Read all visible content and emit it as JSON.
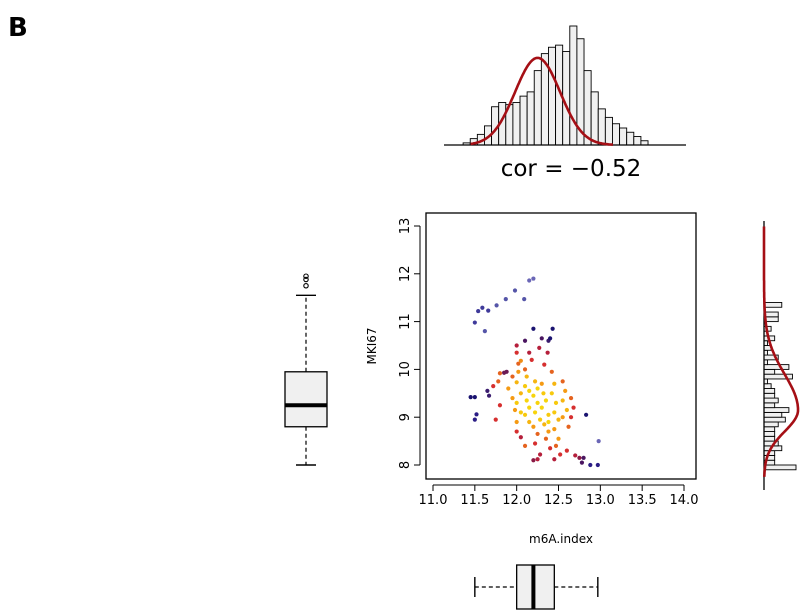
{
  "panel_label": "B",
  "colors": {
    "density_line": "#a50f15",
    "bar_fill": "#f0f0f0",
    "bar_stroke": "#000000",
    "box_fill": "#f0f0f0",
    "axis": "#000000"
  },
  "chart_data": [
    {
      "type": "scatter",
      "name": "main-scatter",
      "xlabel": "m6A.index",
      "ylabel": "MKI67",
      "xlim": [
        11.0,
        14.0
      ],
      "ylim": [
        7.9,
        13.1
      ],
      "xticks": [
        "11.0",
        "11.5",
        "12.0",
        "12.5",
        "13.0",
        "13.5",
        "14.0"
      ],
      "yticks": [
        "8",
        "9",
        "10",
        "11",
        "12",
        "13"
      ],
      "grid": false,
      "points": [
        {
          "x": 11.45,
          "y": 9.42,
          "c": "#1a1370"
        },
        {
          "x": 11.5,
          "y": 9.42,
          "c": "#1a1370"
        },
        {
          "x": 11.52,
          "y": 9.06,
          "c": "#2b1d85"
        },
        {
          "x": 11.5,
          "y": 8.95,
          "c": "#2b1d85"
        },
        {
          "x": 11.5,
          "y": 10.98,
          "c": "#3f3a9a"
        },
        {
          "x": 11.54,
          "y": 11.22,
          "c": "#3f3a9a"
        },
        {
          "x": 11.59,
          "y": 11.29,
          "c": "#3f3a9a"
        },
        {
          "x": 11.66,
          "y": 11.23,
          "c": "#3f3a9a"
        },
        {
          "x": 11.62,
          "y": 10.8,
          "c": "#5555a8"
        },
        {
          "x": 11.76,
          "y": 11.34,
          "c": "#5555a8"
        },
        {
          "x": 11.87,
          "y": 11.47,
          "c": "#5555a8"
        },
        {
          "x": 11.98,
          "y": 11.65,
          "c": "#5555a8"
        },
        {
          "x": 12.15,
          "y": 11.86,
          "c": "#6a66b6"
        },
        {
          "x": 12.2,
          "y": 11.9,
          "c": "#6a66b6"
        },
        {
          "x": 12.09,
          "y": 11.47,
          "c": "#5555a8"
        },
        {
          "x": 11.67,
          "y": 9.45,
          "c": "#3a1c6e"
        },
        {
          "x": 11.65,
          "y": 9.55,
          "c": "#3a1c6e"
        },
        {
          "x": 11.72,
          "y": 9.65,
          "c": "#d62f2f"
        },
        {
          "x": 11.8,
          "y": 9.25,
          "c": "#d62f2f"
        },
        {
          "x": 11.75,
          "y": 8.95,
          "c": "#d62f2f"
        },
        {
          "x": 11.78,
          "y": 9.75,
          "c": "#e5631f"
        },
        {
          "x": 11.85,
          "y": 9.93,
          "c": "#6a1a55"
        },
        {
          "x": 11.88,
          "y": 9.95,
          "c": "#6a1a55"
        },
        {
          "x": 11.8,
          "y": 9.92,
          "c": "#e5631f"
        },
        {
          "x": 11.9,
          "y": 9.6,
          "c": "#f59a13"
        },
        {
          "x": 11.95,
          "y": 9.85,
          "c": "#e5631f"
        },
        {
          "x": 11.95,
          "y": 9.4,
          "c": "#f59a13"
        },
        {
          "x": 11.98,
          "y": 9.15,
          "c": "#f59a13"
        },
        {
          "x": 12.0,
          "y": 10.35,
          "c": "#d62f2f"
        },
        {
          "x": 12.0,
          "y": 10.5,
          "c": "#b51f3b"
        },
        {
          "x": 12.02,
          "y": 10.12,
          "c": "#e5631f"
        },
        {
          "x": 12.05,
          "y": 10.18,
          "c": "#f08c14"
        },
        {
          "x": 12.02,
          "y": 9.95,
          "c": "#f59a13"
        },
        {
          "x": 12.0,
          "y": 9.73,
          "c": "#f6b510"
        },
        {
          "x": 12.05,
          "y": 9.5,
          "c": "#f6b510"
        },
        {
          "x": 12.0,
          "y": 9.3,
          "c": "#f7c90d"
        },
        {
          "x": 12.05,
          "y": 9.1,
          "c": "#f7c90d"
        },
        {
          "x": 12.0,
          "y": 8.9,
          "c": "#f59a13"
        },
        {
          "x": 12.0,
          "y": 8.7,
          "c": "#d62f2f"
        },
        {
          "x": 12.05,
          "y": 8.58,
          "c": "#b51f3b"
        },
        {
          "x": 12.1,
          "y": 8.4,
          "c": "#e5631f"
        },
        {
          "x": 12.12,
          "y": 9.85,
          "c": "#f6b510"
        },
        {
          "x": 12.1,
          "y": 9.65,
          "c": "#f7c90d"
        },
        {
          "x": 12.15,
          "y": 9.55,
          "c": "#f7d40c"
        },
        {
          "x": 12.12,
          "y": 9.35,
          "c": "#f7d40c"
        },
        {
          "x": 12.15,
          "y": 9.2,
          "c": "#f7d40c"
        },
        {
          "x": 12.1,
          "y": 9.05,
          "c": "#f7c90d"
        },
        {
          "x": 12.15,
          "y": 8.9,
          "c": "#f6b510"
        },
        {
          "x": 12.1,
          "y": 10.0,
          "c": "#e5631f"
        },
        {
          "x": 12.18,
          "y": 10.2,
          "c": "#d62f2f"
        },
        {
          "x": 12.15,
          "y": 10.35,
          "c": "#b51f3b"
        },
        {
          "x": 12.1,
          "y": 10.6,
          "c": "#4a1560"
        },
        {
          "x": 12.2,
          "y": 10.85,
          "c": "#1a1370"
        },
        {
          "x": 12.22,
          "y": 9.75,
          "c": "#f6b510"
        },
        {
          "x": 12.25,
          "y": 9.6,
          "c": "#f7d40c"
        },
        {
          "x": 12.2,
          "y": 9.45,
          "c": "#f7d40c"
        },
        {
          "x": 12.25,
          "y": 9.3,
          "c": "#f7d40c"
        },
        {
          "x": 12.22,
          "y": 9.1,
          "c": "#f7d40c"
        },
        {
          "x": 12.28,
          "y": 8.95,
          "c": "#f7c90d"
        },
        {
          "x": 12.2,
          "y": 8.8,
          "c": "#f59a13"
        },
        {
          "x": 12.25,
          "y": 8.65,
          "c": "#e5631f"
        },
        {
          "x": 12.22,
          "y": 8.45,
          "c": "#d62f2f"
        },
        {
          "x": 12.28,
          "y": 8.22,
          "c": "#b51f3b"
        },
        {
          "x": 12.25,
          "y": 8.12,
          "c": "#b51f3b"
        },
        {
          "x": 12.2,
          "y": 8.1,
          "c": "#8a1a45"
        },
        {
          "x": 12.3,
          "y": 9.7,
          "c": "#f59a13"
        },
        {
          "x": 12.32,
          "y": 9.5,
          "c": "#f7c90d"
        },
        {
          "x": 12.35,
          "y": 9.35,
          "c": "#f7d40c"
        },
        {
          "x": 12.3,
          "y": 9.2,
          "c": "#f7d40c"
        },
        {
          "x": 12.38,
          "y": 9.05,
          "c": "#f7c90d"
        },
        {
          "x": 12.33,
          "y": 8.85,
          "c": "#f6b510"
        },
        {
          "x": 12.38,
          "y": 8.7,
          "c": "#f59a13"
        },
        {
          "x": 12.35,
          "y": 8.55,
          "c": "#e5631f"
        },
        {
          "x": 12.4,
          "y": 8.35,
          "c": "#d62f2f"
        },
        {
          "x": 12.33,
          "y": 10.1,
          "c": "#d62f2f"
        },
        {
          "x": 12.37,
          "y": 10.35,
          "c": "#b51f3b"
        },
        {
          "x": 12.3,
          "y": 10.65,
          "c": "#4a1560"
        },
        {
          "x": 12.38,
          "y": 10.6,
          "c": "#3a1c6e"
        },
        {
          "x": 12.43,
          "y": 10.85,
          "c": "#1a1370"
        },
        {
          "x": 12.4,
          "y": 10.65,
          "c": "#1a1370"
        },
        {
          "x": 12.42,
          "y": 9.95,
          "c": "#e5631f"
        },
        {
          "x": 12.45,
          "y": 9.7,
          "c": "#f6b510"
        },
        {
          "x": 12.42,
          "y": 9.5,
          "c": "#f7c90d"
        },
        {
          "x": 12.47,
          "y": 9.3,
          "c": "#f7c90d"
        },
        {
          "x": 12.45,
          "y": 9.1,
          "c": "#f7c90d"
        },
        {
          "x": 12.5,
          "y": 8.95,
          "c": "#f6b510"
        },
        {
          "x": 12.45,
          "y": 8.75,
          "c": "#f59a13"
        },
        {
          "x": 12.5,
          "y": 8.55,
          "c": "#f59a13"
        },
        {
          "x": 12.47,
          "y": 8.4,
          "c": "#e5631f"
        },
        {
          "x": 12.52,
          "y": 8.22,
          "c": "#d62f2f"
        },
        {
          "x": 12.45,
          "y": 8.12,
          "c": "#b51f3b"
        },
        {
          "x": 12.55,
          "y": 9.75,
          "c": "#e5631f"
        },
        {
          "x": 12.58,
          "y": 9.55,
          "c": "#f59a13"
        },
        {
          "x": 12.55,
          "y": 9.35,
          "c": "#f6b510"
        },
        {
          "x": 12.6,
          "y": 9.15,
          "c": "#f6b510"
        },
        {
          "x": 12.55,
          "y": 9.0,
          "c": "#f59a13"
        },
        {
          "x": 12.62,
          "y": 8.8,
          "c": "#e5631f"
        },
        {
          "x": 12.6,
          "y": 8.3,
          "c": "#d62f2f"
        },
        {
          "x": 12.65,
          "y": 9.4,
          "c": "#e5631f"
        },
        {
          "x": 12.68,
          "y": 9.2,
          "c": "#d62f2f"
        },
        {
          "x": 12.65,
          "y": 9.0,
          "c": "#d62f2f"
        },
        {
          "x": 12.7,
          "y": 8.2,
          "c": "#b51f3b"
        },
        {
          "x": 12.75,
          "y": 8.15,
          "c": "#8a1a45"
        },
        {
          "x": 12.78,
          "y": 8.05,
          "c": "#4a1560"
        },
        {
          "x": 12.8,
          "y": 8.15,
          "c": "#4a1560"
        },
        {
          "x": 12.83,
          "y": 9.05,
          "c": "#1a1370"
        },
        {
          "x": 12.88,
          "y": 8.0,
          "c": "#2b1d85"
        },
        {
          "x": 12.97,
          "y": 8.0,
          "c": "#2b1d85"
        },
        {
          "x": 12.98,
          "y": 8.5,
          "c": "#6a66b6"
        },
        {
          "x": 12.38,
          "y": 8.9,
          "c": "#f7d40c"
        },
        {
          "x": 12.27,
          "y": 10.45,
          "c": "#b51f3b"
        }
      ]
    },
    {
      "type": "bar",
      "name": "top-histogram",
      "orientation": "vertical",
      "text": "cor =  −0.52",
      "bins_start": 11.36,
      "bin_width": 0.085,
      "counts": [
        1,
        3,
        5,
        9,
        18,
        20,
        19,
        20,
        23,
        25,
        35,
        43,
        46,
        47,
        44,
        56,
        50,
        35,
        25,
        17,
        13,
        10,
        8,
        6,
        4,
        2
      ],
      "density_max_count": 41
    },
    {
      "type": "bar",
      "name": "right-histogram",
      "orientation": "horizontal",
      "bins_start": 7.9,
      "bin_width": 0.1,
      "counts": [
        9,
        3,
        3,
        3,
        5,
        4,
        3,
        3,
        3,
        4,
        6,
        5,
        7,
        3,
        4,
        3,
        3,
        2,
        1,
        8,
        3,
        7,
        1,
        4,
        1,
        2,
        1,
        3,
        1,
        2,
        0,
        4,
        4,
        0,
        5,
        0,
        0,
        0,
        0,
        0,
        0,
        0
      ]
    },
    {
      "type": "boxplot",
      "name": "left-boxplot",
      "orientation": "vertical",
      "min": 8.0,
      "q1": 8.8,
      "median": 9.25,
      "q3": 9.95,
      "max": 11.55,
      "outliers": [
        11.75,
        11.88,
        11.95
      ]
    },
    {
      "type": "boxplot",
      "name": "bottom-boxplot",
      "orientation": "horizontal",
      "min": 11.5,
      "q1": 12.0,
      "median": 12.2,
      "q3": 12.45,
      "max": 12.97
    }
  ]
}
